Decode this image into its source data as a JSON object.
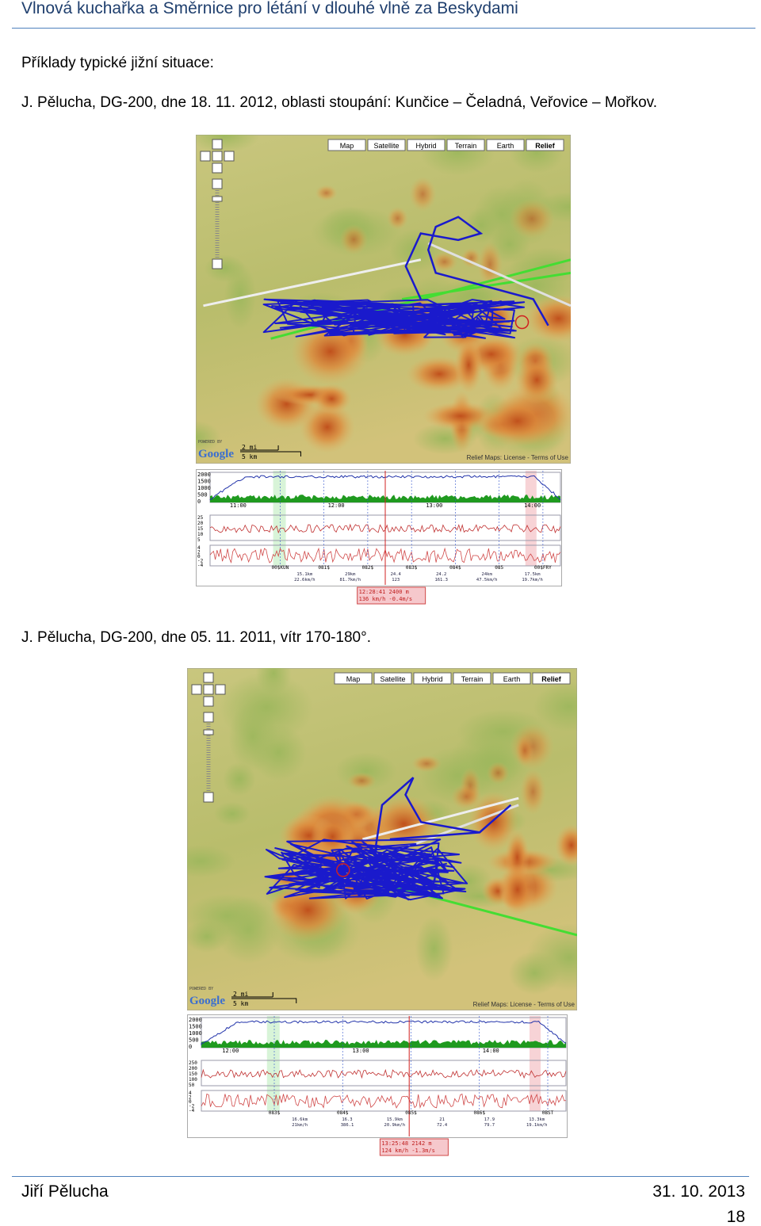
{
  "header": {
    "title": "Vlnová kuchařka a Směrnice pro létání v dlouhé vlně za Beskydami"
  },
  "body": {
    "heading": "Příklady typické jižní situace:",
    "caption_1": "J. Pělucha, DG-200, dne 18. 11. 2012, oblasti stoupání: Kunčice – Čeladná, Veřovice – Mořkov.",
    "caption_2": "J. Pělucha, DG-200, dne 05. 11. 2011, vítr 170-180°."
  },
  "figures": [
    {
      "map": {
        "buttons": [
          "Map",
          "Satellite",
          "Hybrid",
          "Terrain",
          "Earth",
          "Relief"
        ],
        "powered": "POWERED BY",
        "logo": "Google",
        "scale": [
          "2 mi",
          "5 km"
        ],
        "attribution": "Relief Maps: License - Terms of Use"
      },
      "profile": {
        "alt_ticks": [
          "2000",
          "1500",
          "1000",
          "500",
          "0"
        ],
        "times": [
          "11:00",
          "12:00",
          "13:00",
          "14:00"
        ],
        "speed_ticks": [
          "25",
          "20",
          "15",
          "10",
          "5"
        ],
        "vario_ticks": [
          "4",
          "2",
          "0",
          "-2",
          "-4"
        ],
        "waypoints": [
          "00$KUN",
          "081$",
          "082$",
          "083$",
          "084$",
          "085",
          "00$FRY"
        ],
        "stats": [
          [
            "15.1km",
            "22.6km/h"
          ],
          [
            "29km",
            "81.7km/h"
          ],
          [
            "24.4",
            "123"
          ],
          [
            "24.2",
            "161.3"
          ],
          [
            "24km",
            "47.5km/h"
          ],
          [
            "17.5km",
            "19.7km/h"
          ]
        ],
        "info": [
          "12:28:41  2400 m",
          "136 km/h  -0.4m/s"
        ]
      }
    },
    {
      "map": {
        "buttons": [
          "Map",
          "Satellite",
          "Hybrid",
          "Terrain",
          "Earth",
          "Relief"
        ],
        "powered": "POWERED BY",
        "logo": "Google",
        "scale": [
          "2 mi",
          "5 km"
        ],
        "attribution": "Relief Maps: License - Terms of Use"
      },
      "profile": {
        "alt_ticks": [
          "2000",
          "1500",
          "1000",
          "500",
          "0"
        ],
        "times": [
          "12:00",
          "13:00",
          "14:00"
        ],
        "speed_ticks": [
          "250",
          "200",
          "150",
          "100",
          "50"
        ],
        "vario_ticks": [
          "4",
          "2",
          "0",
          "-2",
          "-4"
        ],
        "waypoints": [
          "083$",
          "084$",
          "085$",
          "086$",
          "0BST"
        ],
        "stats": [
          [
            "16.6km",
            "21km/h"
          ],
          [
            "16.3",
            "386.1"
          ],
          [
            "15.9km",
            "20.9km/h"
          ],
          [
            "21",
            "72.4"
          ],
          [
            "17.9",
            "79.7"
          ],
          [
            "13.3km",
            "19.1km/h"
          ]
        ],
        "info": [
          "13:25:48  2142 m",
          "124 km/h  -1.3m/s"
        ]
      }
    }
  ],
  "footer": {
    "author": "Jiří Pělucha",
    "date": "31. 10. 2013",
    "page": "18"
  }
}
